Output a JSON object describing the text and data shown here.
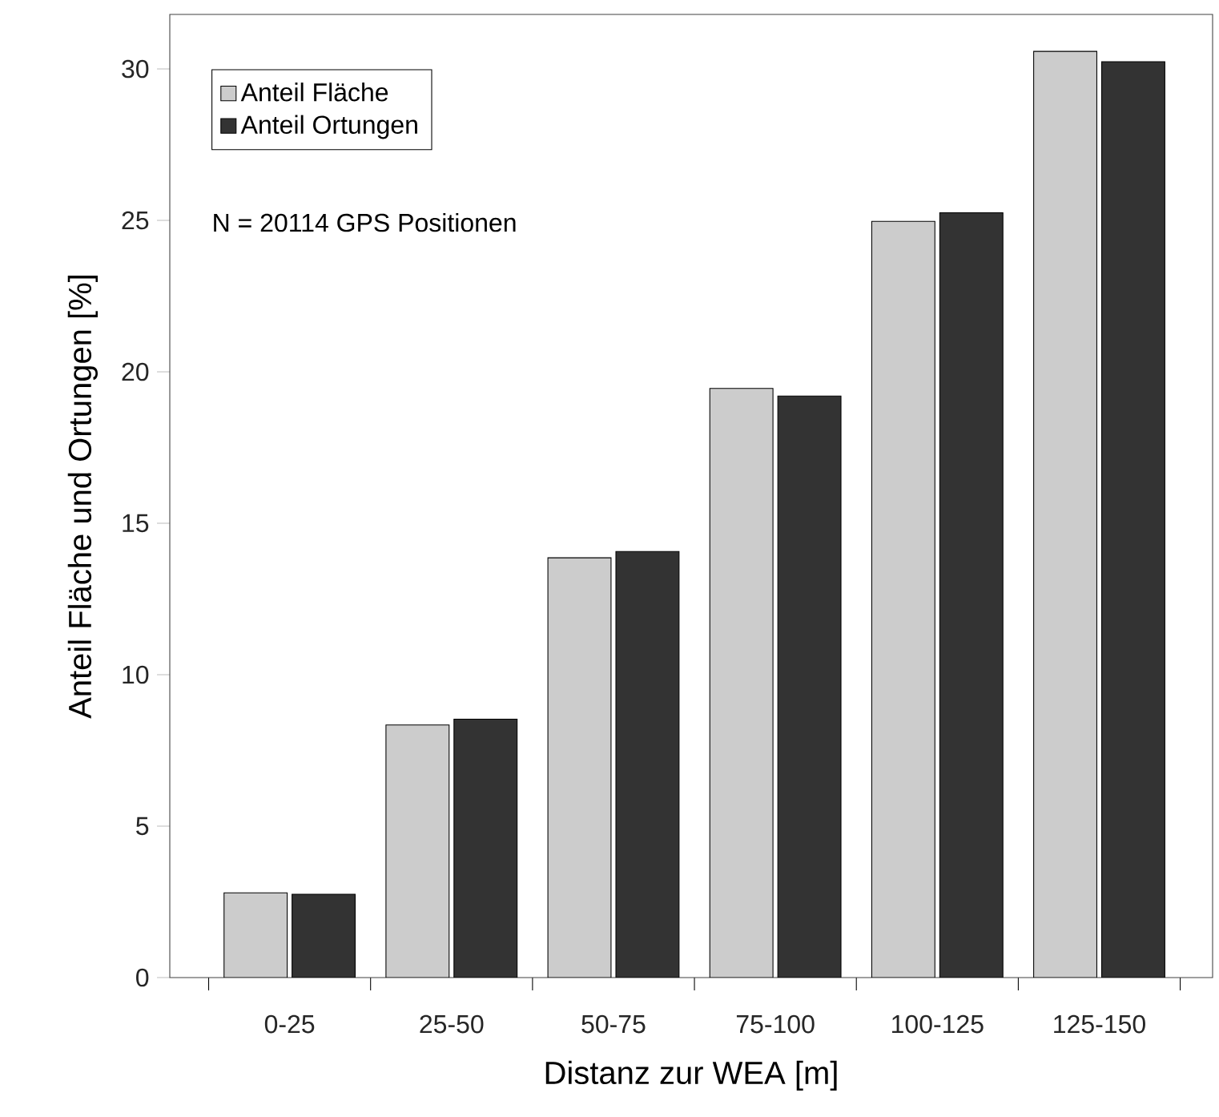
{
  "chart_data": {
    "type": "bar",
    "categories": [
      "0-25",
      "25-50",
      "50-75",
      "75-100",
      "100-125",
      "125-150"
    ],
    "xlabel": "Distanz zur WEA [m]",
    "ylabel": "Anteil Fläche und Ortungen [%]",
    "series": [
      {
        "name": "Anteil Fläche",
        "color": "#cccccc",
        "values": [
          2.8,
          8.34,
          13.86,
          19.45,
          24.97,
          30.58
        ]
      },
      {
        "name": "Anteil Ortungen",
        "color": "#333333",
        "values": [
          2.75,
          8.53,
          14.07,
          19.2,
          25.25,
          30.24
        ]
      }
    ],
    "ylim": [
      0,
      31.8
    ],
    "yticks": [
      0,
      5,
      10,
      15,
      20,
      25,
      30
    ],
    "legend": "top left",
    "annotations": [
      "N = 20114 GPS Positionen"
    ]
  }
}
